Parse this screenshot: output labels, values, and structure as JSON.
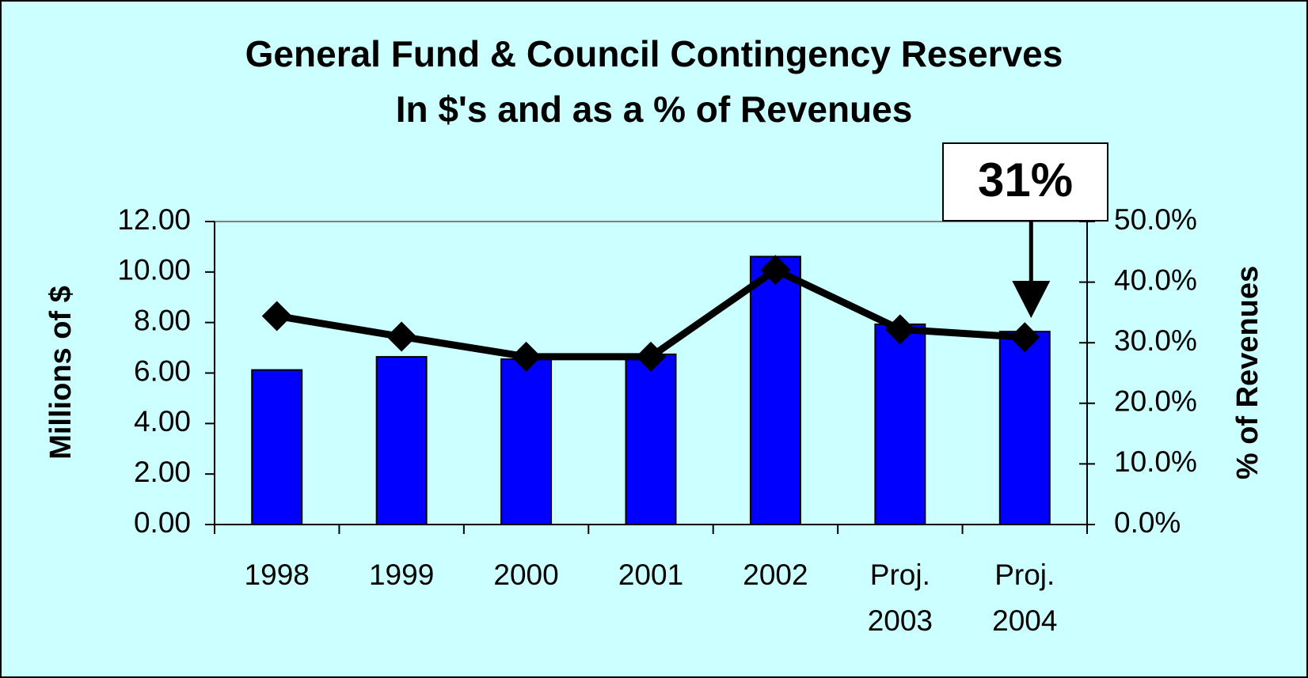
{
  "chart_data": {
    "type": "bar_line",
    "title": "General Fund & Council Contingency Reserves",
    "subtitle": "In $'s and as a % of Revenues",
    "y_label": "Millions of $",
    "y2_label": "% of Revenues",
    "annotation": "31%",
    "categories": [
      "1998",
      "1999",
      "2000",
      "2001",
      "2002",
      "Proj. 2003",
      "Proj. 2004"
    ],
    "series": [
      {
        "name": "Reserves",
        "type": "bar",
        "color": "#0000ff",
        "values": [
          6.12,
          6.64,
          6.55,
          6.74,
          10.61,
          7.93,
          7.64
        ]
      },
      {
        "name": "% of Revenues",
        "type": "line",
        "axis": "y2",
        "color": "#000000",
        "values": [
          34.4,
          31.0,
          27.7,
          27.7,
          42.0,
          32.2,
          30.9
        ]
      }
    ],
    "ylim": [
      0,
      12
    ],
    "yticks": [
      {
        "value": 0,
        "label": "0.00"
      },
      {
        "value": 2,
        "label": "2.00"
      },
      {
        "value": 4,
        "label": "4.00"
      },
      {
        "value": 6,
        "label": "6.00"
      },
      {
        "value": 8,
        "label": "8.00"
      },
      {
        "value": 10,
        "label": "10.00"
      },
      {
        "value": 12,
        "label": "12.00"
      }
    ],
    "y2lim": [
      0,
      50
    ],
    "y2ticks": [
      {
        "value": 0,
        "label": "0.0%"
      },
      {
        "value": 10,
        "label": "10.0%"
      },
      {
        "value": 20,
        "label": "20.0%"
      },
      {
        "value": 30,
        "label": "30.0%"
      },
      {
        "value": 40,
        "label": "40.0%"
      },
      {
        "value": 50,
        "label": "50.0%"
      }
    ],
    "grid": false
  }
}
